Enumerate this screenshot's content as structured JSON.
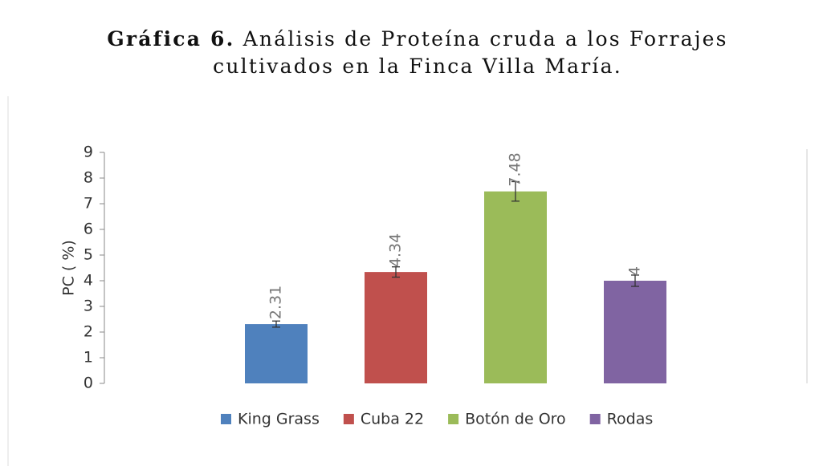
{
  "chart_data": {
    "type": "bar",
    "title_label": "Gráfica 6.",
    "title": "Análisis de Proteína cruda a los Forrajes cultivados en la Finca Villa María.",
    "y_label": "PC ( %)",
    "categories": [
      null
    ],
    "series": [
      {
        "name": "King Grass",
        "color": "#4f81bd",
        "values": [
          2.31
        ],
        "errors": [
          0.12
        ]
      },
      {
        "name": "Cuba 22",
        "color": "#c0504d",
        "values": [
          4.34
        ],
        "errors": [
          0.2
        ]
      },
      {
        "name": "Botón de Oro",
        "color": "#9bbb59",
        "values": [
          7.48
        ],
        "errors": [
          0.38
        ]
      },
      {
        "name": "Rodas",
        "color": "#8064a2",
        "values": [
          4
        ],
        "errors": [
          0.22
        ]
      }
    ],
    "ylim": [
      0,
      9
    ],
    "yticks": [
      0,
      1,
      2,
      3,
      4,
      5,
      6,
      7,
      8,
      9
    ],
    "legend": "bottom"
  }
}
